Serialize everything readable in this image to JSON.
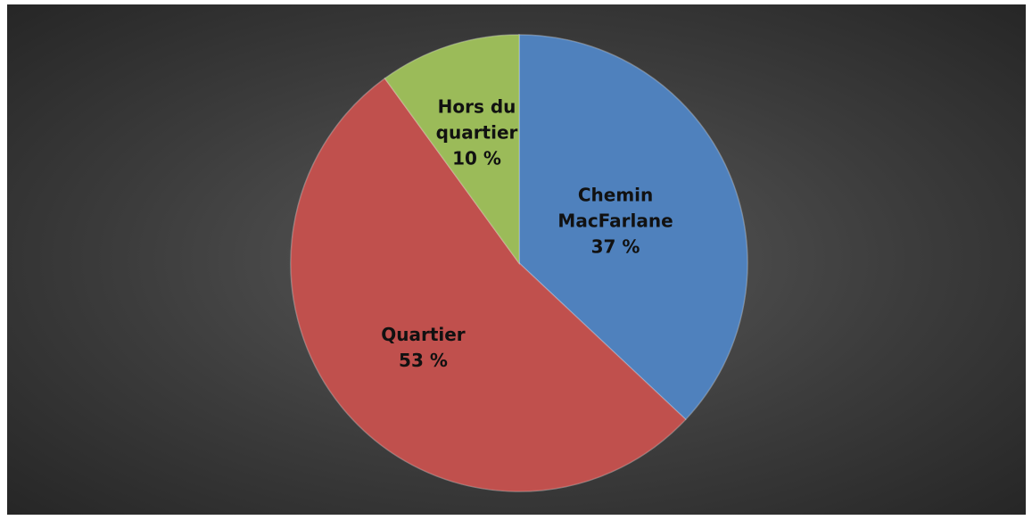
{
  "chart_data": {
    "type": "pie",
    "categories": [
      "Chemin MacFarlane",
      "Quartier",
      "Hors du quartier"
    ],
    "values": [
      37,
      53,
      10
    ],
    "value_labels": [
      "37 %",
      "53 %",
      "10 %"
    ],
    "colors": [
      "#4f81bd",
      "#c0504d",
      "#9bbb59"
    ]
  }
}
